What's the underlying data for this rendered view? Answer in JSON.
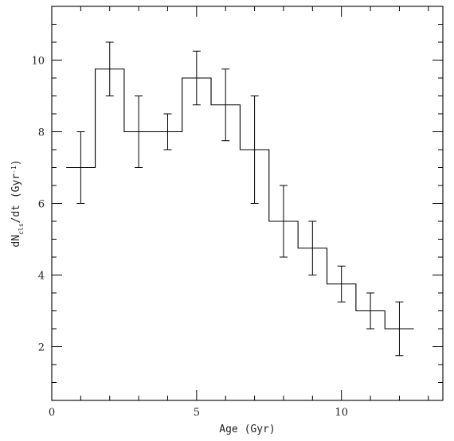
{
  "chart_data": {
    "type": "histogram",
    "xlabel": "Age (Gyr)",
    "ylabel": {
      "prefix": "dN",
      "subscript": "cls",
      "middle": "/dt (Gyr",
      "superscript": "-1",
      "suffix": ")"
    },
    "xlim": [
      0,
      13.5
    ],
    "ylim": [
      0.5,
      11.5
    ],
    "x_ticks_major": [
      0,
      5,
      10
    ],
    "y_ticks_major": [
      2,
      4,
      6,
      8,
      10
    ],
    "x_minor_step": 1,
    "y_minor_step": 0.5,
    "grid": false,
    "bins": [
      {
        "x0": 0.5,
        "x1": 1.5,
        "center": 1,
        "value": 7.0,
        "err_low": 6.0,
        "err_high": 8.0
      },
      {
        "x0": 1.5,
        "x1": 2.5,
        "center": 2,
        "value": 9.75,
        "err_low": 9.0,
        "err_high": 10.5
      },
      {
        "x0": 2.5,
        "x1": 3.5,
        "center": 3,
        "value": 8.0,
        "err_low": 7.0,
        "err_high": 9.0
      },
      {
        "x0": 3.5,
        "x1": 4.5,
        "center": 4,
        "value": 8.0,
        "err_low": 7.5,
        "err_high": 8.5
      },
      {
        "x0": 4.5,
        "x1": 5.5,
        "center": 5,
        "value": 9.5,
        "err_low": 8.75,
        "err_high": 10.25
      },
      {
        "x0": 5.5,
        "x1": 6.5,
        "center": 6,
        "value": 8.75,
        "err_low": 7.75,
        "err_high": 9.75
      },
      {
        "x0": 6.5,
        "x1": 7.5,
        "center": 7,
        "value": 7.5,
        "err_low": 6.0,
        "err_high": 9.0
      },
      {
        "x0": 7.5,
        "x1": 8.5,
        "center": 8,
        "value": 5.5,
        "err_low": 4.5,
        "err_high": 6.5
      },
      {
        "x0": 8.5,
        "x1": 9.5,
        "center": 9,
        "value": 4.75,
        "err_low": 4.0,
        "err_high": 5.5
      },
      {
        "x0": 9.5,
        "x1": 10.5,
        "center": 10,
        "value": 3.75,
        "err_low": 3.25,
        "err_high": 4.25
      },
      {
        "x0": 10.5,
        "x1": 11.5,
        "center": 11,
        "value": 3.0,
        "err_low": 2.5,
        "err_high": 3.5
      },
      {
        "x0": 11.5,
        "x1": 12.5,
        "center": 12,
        "value": 2.5,
        "err_low": 1.75,
        "err_high": 3.25
      }
    ]
  }
}
